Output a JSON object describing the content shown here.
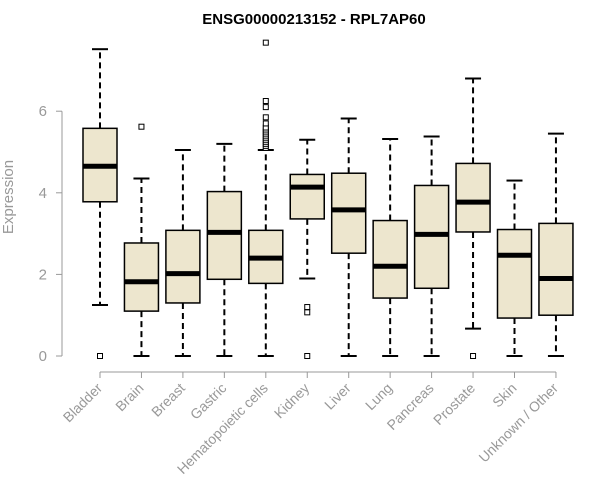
{
  "chart_data": {
    "type": "boxplot",
    "title": "ENSG00000213152 - RPL7AP60",
    "xlabel": "",
    "ylabel": "Expression",
    "ylim": [
      0,
      7.8
    ],
    "yticks": [
      0,
      2,
      4,
      6
    ],
    "box_fill": "#EDE6CE",
    "box_stroke": "#000000",
    "axis_color": "#999999",
    "categories": [
      "Bladder",
      "Brain",
      "Breast",
      "Gastric",
      "Hematopoietic cells",
      "Kidney",
      "Liver",
      "Lung",
      "Pancreas",
      "Prostate",
      "Skin",
      "Unknown / Other"
    ],
    "boxes": [
      {
        "whisker_low": 1.25,
        "q1": 3.78,
        "median": 4.65,
        "q3": 5.58,
        "whisker_high": 7.52,
        "outliers": [
          0.0
        ]
      },
      {
        "whisker_low": 0.0,
        "q1": 1.1,
        "median": 1.82,
        "q3": 2.77,
        "whisker_high": 4.35,
        "outliers": [
          5.62
        ]
      },
      {
        "whisker_low": 0.0,
        "q1": 1.3,
        "median": 2.02,
        "q3": 3.08,
        "whisker_high": 5.05,
        "outliers": []
      },
      {
        "whisker_low": 0.0,
        "q1": 1.88,
        "median": 3.03,
        "q3": 4.03,
        "whisker_high": 5.2,
        "outliers": []
      },
      {
        "whisker_low": 0.0,
        "q1": 1.78,
        "median": 2.4,
        "q3": 3.08,
        "whisker_high": 5.05,
        "outliers": [
          5.1,
          5.15,
          5.2,
          5.25,
          5.3,
          5.35,
          5.4,
          5.45,
          5.5,
          5.55,
          5.6,
          5.7,
          5.85,
          6.1,
          6.25,
          7.68
        ]
      },
      {
        "whisker_low": 1.9,
        "q1": 3.36,
        "median": 4.14,
        "q3": 4.45,
        "whisker_high": 5.3,
        "outliers": [
          1.07,
          1.2,
          0.0
        ]
      },
      {
        "whisker_low": 0.0,
        "q1": 2.52,
        "median": 3.58,
        "q3": 4.48,
        "whisker_high": 5.82,
        "outliers": []
      },
      {
        "whisker_low": 0.0,
        "q1": 1.42,
        "median": 2.2,
        "q3": 3.32,
        "whisker_high": 5.32,
        "outliers": []
      },
      {
        "whisker_low": 0.0,
        "q1": 1.66,
        "median": 2.98,
        "q3": 4.18,
        "whisker_high": 5.38,
        "outliers": []
      },
      {
        "whisker_low": 0.67,
        "q1": 3.04,
        "median": 3.77,
        "q3": 4.72,
        "whisker_high": 6.8,
        "outliers": [
          0.0
        ]
      },
      {
        "whisker_low": 0.0,
        "q1": 0.93,
        "median": 2.47,
        "q3": 3.1,
        "whisker_high": 4.3,
        "outliers": []
      },
      {
        "whisker_low": 0.0,
        "q1": 1.0,
        "median": 1.9,
        "q3": 3.25,
        "whisker_high": 5.45,
        "outliers": []
      }
    ]
  }
}
